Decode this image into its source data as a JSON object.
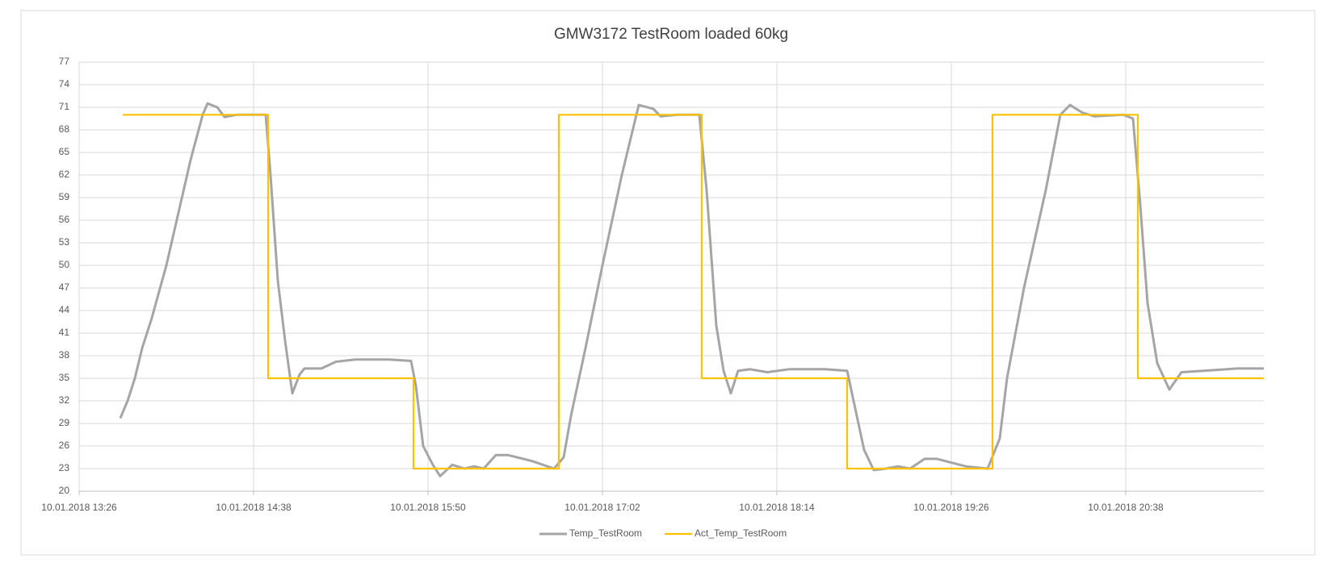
{
  "chart_data": {
    "type": "line",
    "title": "GMW3172 TestRoom loaded 60kg",
    "xlim": [
      "10.01.2018 13:26",
      "10.01.2018 21:35"
    ],
    "xticks": [
      "10.01.2018 13:26",
      "10.01.2018 14:38",
      "10.01.2018 15:50",
      "10.01.2018 17:02",
      "10.01.2018 18:14",
      "10.01.2018 19:26",
      "10.01.2018 20:38"
    ],
    "ylim": [
      20,
      77
    ],
    "yticks": [
      20,
      23,
      26,
      29,
      32,
      35,
      38,
      41,
      44,
      47,
      50,
      53,
      56,
      59,
      62,
      65,
      68,
      71,
      74,
      77
    ],
    "grid": true,
    "legend": "bottom",
    "series": [
      {
        "name": "Temp_TestRoom",
        "color": "#a5a5a5",
        "x": [
          "10.01.2018 13:43",
          "10.01.2018 13:46",
          "10.01.2018 13:49",
          "10.01.2018 13:52",
          "10.01.2018 13:56",
          "10.01.2018 14:02",
          "10.01.2018 14:07",
          "10.01.2018 14:12",
          "10.01.2018 14:17",
          "10.01.2018 14:19",
          "10.01.2018 14:23",
          "10.01.2018 14:26",
          "10.01.2018 14:31",
          "10.01.2018 14:43",
          "10.01.2018 14:45",
          "10.01.2018 14:48",
          "10.01.2018 14:51",
          "10.01.2018 14:54",
          "10.01.2018 14:57",
          "10.01.2018 14:59",
          "10.01.2018 15:06",
          "10.01.2018 15:12",
          "10.01.2018 15:20",
          "10.01.2018 15:34",
          "10.01.2018 15:43",
          "10.01.2018 15:45",
          "10.01.2018 15:48",
          "10.01.2018 15:52",
          "10.01.2018 15:55",
          "10.01.2018 16:00",
          "10.01.2018 16:05",
          "10.01.2018 16:09",
          "10.01.2018 16:13",
          "10.01.2018 16:18",
          "10.01.2018 16:23",
          "10.01.2018 16:33",
          "10.01.2018 16:42",
          "10.01.2018 16:46",
          "10.01.2018 16:49",
          "10.01.2018 16:55",
          "10.01.2018 17:02",
          "10.01.2018 17:10",
          "10.01.2018 17:17",
          "10.01.2018 17:23",
          "10.01.2018 17:26",
          "10.01.2018 17:33",
          "10.01.2018 17:42",
          "10.01.2018 17:45",
          "10.01.2018 17:49",
          "10.01.2018 17:52",
          "10.01.2018 17:55",
          "10.01.2018 17:58",
          "10.01.2018 18:03",
          "10.01.2018 18:10",
          "10.01.2018 18:19",
          "10.01.2018 18:34",
          "10.01.2018 18:43",
          "10.01.2018 18:47",
          "10.01.2018 18:50",
          "10.01.2018 18:54",
          "10.01.2018 18:59",
          "10.01.2018 19:04",
          "10.01.2018 19:09",
          "10.01.2018 19:15",
          "10.01.2018 19:20",
          "10.01.2018 19:32",
          "10.01.2018 19:41",
          "10.01.2018 19:46",
          "10.01.2018 19:49",
          "10.01.2018 19:56",
          "10.01.2018 20:05",
          "10.01.2018 20:11",
          "10.01.2018 20:15",
          "10.01.2018 20:20",
          "10.01.2018 20:25",
          "10.01.2018 20:37",
          "10.01.2018 20:41",
          "10.01.2018 20:44",
          "10.01.2018 20:47",
          "10.01.2018 20:51",
          "10.01.2018 20:56",
          "10.01.2018 21:01",
          "10.01.2018 21:10",
          "10.01.2018 21:24",
          "10.01.2018 21:35"
        ],
        "values": [
          29.7,
          32,
          35,
          39,
          43,
          50,
          57,
          64,
          70,
          71.5,
          71,
          69.7,
          70,
          70,
          62,
          48,
          40,
          33,
          35.5,
          36.3,
          36.3,
          37.2,
          37.5,
          37.5,
          37.3,
          34,
          26,
          23.5,
          22,
          23.5,
          23,
          23.3,
          23,
          24.8,
          24.8,
          24,
          23,
          24.5,
          30,
          39,
          50,
          62,
          71.3,
          70.8,
          69.8,
          70,
          70,
          60,
          42,
          36,
          33,
          36,
          36.2,
          35.8,
          36.2,
          36.2,
          36,
          30,
          25.5,
          22.8,
          23,
          23.3,
          23,
          24.3,
          24.3,
          23.3,
          23,
          27,
          35,
          47,
          60,
          70,
          71.3,
          70.3,
          69.8,
          70,
          69.5,
          58,
          45,
          37,
          33.5,
          35.8,
          36,
          36.3,
          36.3
        ]
      },
      {
        "name": "Act_Temp_TestRoom",
        "color": "#ffc000",
        "x": [
          "10.01.2018 13:44",
          "10.01.2018 14:44",
          "10.01.2018 14:44",
          "10.01.2018 15:44",
          "10.01.2018 15:44",
          "10.01.2018 16:44",
          "10.01.2018 16:44",
          "10.01.2018 17:43",
          "10.01.2018 17:43",
          "10.01.2018 18:43",
          "10.01.2018 18:43",
          "10.01.2018 19:43",
          "10.01.2018 19:43",
          "10.01.2018 20:43",
          "10.01.2018 20:43",
          "10.01.2018 21:35"
        ],
        "values": [
          70,
          70,
          35,
          35,
          23,
          23,
          70,
          70,
          35,
          35,
          23,
          23,
          70,
          70,
          35,
          35
        ]
      }
    ]
  }
}
